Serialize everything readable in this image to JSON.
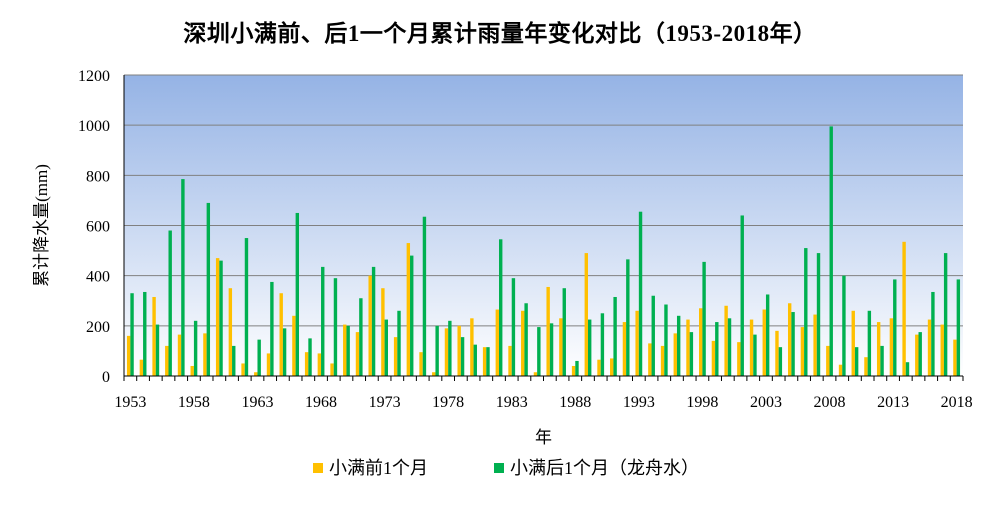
{
  "chart_data": {
    "type": "bar",
    "title": "深圳小满前、后1一个月累计雨量年变化对比（1953-2018年）",
    "xlabel": "年",
    "ylabel": "累计降水量(mm)",
    "ylim": [
      0,
      1200
    ],
    "yticks": [
      0,
      200,
      400,
      600,
      800,
      1000,
      1200
    ],
    "xticks": [
      "1953",
      "1958",
      "1963",
      "1968",
      "1973",
      "1978",
      "1983",
      "1988",
      "1993",
      "1998",
      "2003",
      "2008",
      "2013",
      "2018"
    ],
    "grid": true,
    "legend_position": "bottom",
    "categories": [
      1953,
      1954,
      1955,
      1956,
      1957,
      1958,
      1959,
      1960,
      1961,
      1962,
      1963,
      1964,
      1965,
      1966,
      1967,
      1968,
      1969,
      1970,
      1971,
      1972,
      1973,
      1974,
      1975,
      1976,
      1977,
      1978,
      1979,
      1980,
      1981,
      1982,
      1983,
      1984,
      1985,
      1986,
      1987,
      1988,
      1989,
      1990,
      1991,
      1992,
      1993,
      1994,
      1995,
      1996,
      1997,
      1998,
      1999,
      2000,
      2001,
      2002,
      2003,
      2004,
      2005,
      2006,
      2007,
      2008,
      2009,
      2010,
      2011,
      2012,
      2013,
      2014,
      2015,
      2016,
      2017,
      2018
    ],
    "series": [
      {
        "name": "小满前1个月",
        "color": "#FFC000",
        "values": [
          160,
          65,
          315,
          120,
          165,
          40,
          170,
          470,
          350,
          50,
          15,
          90,
          330,
          240,
          95,
          90,
          50,
          205,
          175,
          400,
          350,
          155,
          530,
          95,
          15,
          190,
          200,
          230,
          115,
          265,
          120,
          260,
          15,
          355,
          230,
          40,
          490,
          65,
          70,
          215,
          260,
          130,
          120,
          170,
          225,
          270,
          140,
          280,
          135,
          225,
          265,
          180,
          290,
          195,
          245,
          120,
          45,
          260,
          75,
          215,
          230,
          535,
          165,
          225,
          205,
          145
        ]
      },
      {
        "name": "小满后1个月（龙舟水）",
        "color": "#00B050",
        "values": [
          330,
          335,
          205,
          580,
          785,
          220,
          690,
          460,
          120,
          550,
          145,
          375,
          190,
          650,
          150,
          435,
          390,
          200,
          310,
          435,
          225,
          260,
          480,
          635,
          200,
          220,
          155,
          125,
          115,
          545,
          390,
          290,
          195,
          210,
          350,
          60,
          225,
          250,
          315,
          465,
          655,
          320,
          285,
          240,
          175,
          455,
          215,
          230,
          640,
          165,
          325,
          115,
          255,
          510,
          490,
          995,
          400,
          115,
          260,
          120,
          385,
          55,
          175,
          335,
          490,
          385
        ]
      }
    ]
  }
}
